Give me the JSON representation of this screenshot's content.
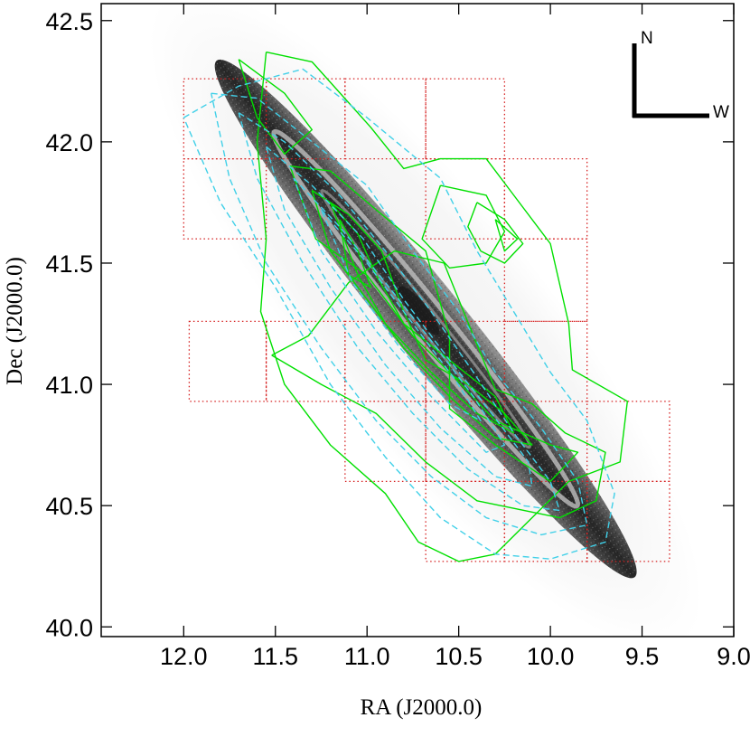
{
  "chart_data": {
    "type": "contour_map",
    "xlabel": "RA (J2000.0)",
    "ylabel": "Dec (J2000.0)",
    "xlim": [
      12.45,
      9.0
    ],
    "ylim": [
      39.96,
      42.57
    ],
    "x_ticks": [
      12.0,
      11.5,
      11.0,
      10.5,
      10.0,
      9.5,
      9.0
    ],
    "x_tick_labels": [
      "12.0",
      "11.5",
      "11.0",
      "10.5",
      "10.0",
      "9.5",
      "9.0"
    ],
    "y_ticks": [
      40.0,
      40.5,
      41.0,
      41.5,
      42.0,
      42.5
    ],
    "y_tick_labels": [
      "40.0",
      "40.5",
      "41.0",
      "41.5",
      "42.0",
      "42.5"
    ],
    "compass": {
      "north_label": "N",
      "west_label": "W"
    },
    "galaxy_image": {
      "description_color": "#444444",
      "center": [
        10.68,
        41.27
      ],
      "major_axis_end_ne": [
        11.88,
        42.33
      ],
      "major_axis_end_sw": [
        9.6,
        40.2
      ],
      "half_width_deg": 0.2,
      "ring": {
        "major_half": 1.25,
        "minor_half": 0.16
      }
    },
    "field_boxes": {
      "color": "#d62020",
      "boxes": [
        [
          [
            12.0,
            41.93
          ],
          [
            11.55,
            42.26
          ]
        ],
        [
          [
            12.0,
            41.6
          ],
          [
            11.55,
            41.93
          ]
        ],
        [
          [
            11.55,
            41.93
          ],
          [
            11.12,
            42.26
          ]
        ],
        [
          [
            11.12,
            41.93
          ],
          [
            10.68,
            42.26
          ]
        ],
        [
          [
            10.68,
            41.93
          ],
          [
            10.25,
            42.26
          ]
        ],
        [
          [
            10.68,
            41.6
          ],
          [
            10.25,
            41.93
          ]
        ],
        [
          [
            10.25,
            41.6
          ],
          [
            9.8,
            41.93
          ]
        ],
        [
          [
            10.25,
            41.26
          ],
          [
            9.8,
            41.6
          ]
        ],
        [
          [
            11.97,
            40.93
          ],
          [
            11.55,
            41.26
          ]
        ],
        [
          [
            11.55,
            40.93
          ],
          [
            11.12,
            41.26
          ]
        ],
        [
          [
            11.12,
            40.93
          ],
          [
            10.68,
            41.26
          ]
        ],
        [
          [
            10.68,
            40.93
          ],
          [
            10.25,
            41.26
          ]
        ],
        [
          [
            10.25,
            40.93
          ],
          [
            9.8,
            41.26
          ]
        ],
        [
          [
            11.12,
            40.6
          ],
          [
            10.68,
            40.93
          ]
        ],
        [
          [
            10.68,
            40.6
          ],
          [
            10.25,
            40.93
          ]
        ],
        [
          [
            10.68,
            40.27
          ],
          [
            10.25,
            40.6
          ]
        ],
        [
          [
            10.25,
            40.27
          ],
          [
            9.8,
            40.6
          ]
        ],
        [
          [
            9.8,
            40.6
          ],
          [
            9.35,
            40.93
          ]
        ],
        [
          [
            9.8,
            40.27
          ],
          [
            9.35,
            40.6
          ]
        ]
      ]
    },
    "series": [
      {
        "color": "#00e000",
        "style": "solid",
        "contours": [
          [
            [
              11.55,
              42.37
            ],
            [
              11.3,
              42.33
            ],
            [
              10.98,
              42.06
            ],
            [
              10.8,
              41.89
            ],
            [
              10.6,
              41.93
            ],
            [
              10.35,
              41.93
            ],
            [
              10.22,
              41.8
            ],
            [
              10.0,
              41.58
            ],
            [
              9.9,
              41.25
            ],
            [
              9.88,
              41.06
            ],
            [
              9.58,
              40.93
            ],
            [
              9.62,
              40.68
            ],
            [
              9.9,
              40.6
            ],
            [
              10.3,
              40.3
            ],
            [
              10.5,
              40.27
            ],
            [
              10.72,
              40.35
            ],
            [
              10.9,
              40.55
            ],
            [
              11.2,
              40.75
            ],
            [
              11.45,
              41.0
            ],
            [
              11.58,
              41.3
            ],
            [
              11.55,
              41.6
            ],
            [
              11.6,
              42.0
            ],
            [
              11.55,
              42.37
            ]
          ],
          [
            [
              11.7,
              42.34
            ],
            [
              11.45,
              42.2
            ],
            [
              11.3,
              42.05
            ],
            [
              11.45,
              41.95
            ],
            [
              11.6,
              42.1
            ],
            [
              11.7,
              42.34
            ]
          ],
          [
            [
              11.42,
              41.9
            ],
            [
              11.2,
              41.88
            ],
            [
              10.95,
              41.72
            ],
            [
              10.68,
              41.55
            ],
            [
              10.55,
              41.2
            ],
            [
              10.55,
              40.9
            ],
            [
              10.3,
              40.75
            ],
            [
              10.0,
              40.6
            ],
            [
              9.85,
              40.72
            ],
            [
              10.0,
              40.75
            ],
            [
              10.3,
              40.85
            ],
            [
              10.55,
              41.05
            ],
            [
              10.75,
              41.2
            ],
            [
              11.0,
              41.45
            ],
            [
              11.28,
              41.6
            ],
            [
              11.42,
              41.9
            ]
          ],
          [
            [
              11.3,
              41.8
            ],
            [
              11.1,
              41.7
            ],
            [
              10.92,
              41.55
            ],
            [
              10.8,
              41.3
            ],
            [
              10.68,
              41.1
            ],
            [
              10.45,
              41.0
            ],
            [
              10.25,
              40.88
            ],
            [
              10.1,
              40.75
            ],
            [
              10.3,
              40.78
            ],
            [
              10.55,
              40.95
            ],
            [
              10.8,
              41.15
            ],
            [
              11.0,
              41.35
            ],
            [
              11.2,
              41.55
            ],
            [
              11.3,
              41.8
            ]
          ],
          [
            [
              11.2,
              41.75
            ],
            [
              11.05,
              41.62
            ],
            [
              10.95,
              41.45
            ],
            [
              10.8,
              41.25
            ],
            [
              10.55,
              41.1
            ],
            [
              10.3,
              40.95
            ],
            [
              10.2,
              40.8
            ],
            [
              10.4,
              40.88
            ],
            [
              10.65,
              41.05
            ],
            [
              10.9,
              41.25
            ],
            [
              11.05,
              41.45
            ],
            [
              11.2,
              41.75
            ]
          ],
          [
            [
              11.15,
              41.68
            ],
            [
              11.05,
              41.55
            ],
            [
              10.98,
              41.4
            ],
            [
              11.1,
              41.45
            ],
            [
              11.15,
              41.68
            ]
          ],
          [
            [
              10.6,
              41.82
            ],
            [
              10.35,
              41.78
            ],
            [
              10.25,
              41.63
            ],
            [
              10.35,
              41.5
            ],
            [
              10.55,
              41.48
            ],
            [
              10.7,
              41.6
            ],
            [
              10.6,
              41.82
            ]
          ],
          [
            [
              10.4,
              41.75
            ],
            [
              10.25,
              41.68
            ],
            [
              10.15,
              41.58
            ],
            [
              10.25,
              41.5
            ],
            [
              10.38,
              41.55
            ],
            [
              10.45,
              41.65
            ],
            [
              10.4,
              41.75
            ]
          ],
          [
            [
              10.3,
              41.68
            ],
            [
              10.18,
              41.6
            ],
            [
              10.25,
              41.55
            ],
            [
              10.3,
              41.68
            ]
          ],
          [
            [
              11.52,
              41.12
            ],
            [
              11.32,
              41.2
            ],
            [
              11.1,
              41.42
            ],
            [
              10.85,
              41.55
            ],
            [
              10.58,
              41.5
            ],
            [
              10.42,
              41.2
            ],
            [
              10.3,
              40.98
            ],
            [
              10.1,
              40.92
            ],
            [
              9.92,
              40.8
            ],
            [
              9.7,
              40.72
            ],
            [
              9.75,
              40.52
            ],
            [
              9.95,
              40.45
            ],
            [
              10.4,
              40.52
            ],
            [
              10.68,
              40.68
            ],
            [
              10.95,
              40.88
            ],
            [
              11.25,
              41.0
            ],
            [
              11.52,
              41.12
            ]
          ]
        ]
      },
      {
        "color": "#40d0e8",
        "style": "dashed",
        "contours": [
          [
            [
              12.0,
              42.1
            ],
            [
              11.7,
              42.23
            ],
            [
              11.35,
              42.3
            ],
            [
              11.0,
              42.1
            ],
            [
              10.6,
              41.85
            ],
            [
              10.4,
              41.55
            ],
            [
              10.2,
              41.3
            ],
            [
              10.0,
              41.05
            ],
            [
              9.8,
              40.85
            ],
            [
              9.65,
              40.55
            ],
            [
              9.7,
              40.35
            ],
            [
              10.0,
              40.28
            ],
            [
              10.3,
              40.3
            ],
            [
              10.6,
              40.45
            ],
            [
              10.9,
              40.7
            ],
            [
              11.2,
              41.0
            ],
            [
              11.5,
              41.4
            ],
            [
              11.8,
              41.75
            ],
            [
              12.0,
              42.1
            ]
          ],
          [
            [
              11.85,
              42.2
            ],
            [
              11.6,
              42.18
            ],
            [
              11.3,
              42.0
            ],
            [
              11.0,
              41.82
            ],
            [
              10.75,
              41.55
            ],
            [
              10.5,
              41.3
            ],
            [
              10.3,
              41.05
            ],
            [
              10.05,
              40.82
            ],
            [
              9.85,
              40.6
            ],
            [
              9.8,
              40.42
            ],
            [
              10.05,
              40.38
            ],
            [
              10.35,
              40.45
            ],
            [
              10.65,
              40.62
            ],
            [
              10.95,
              40.85
            ],
            [
              11.25,
              41.15
            ],
            [
              11.55,
              41.5
            ],
            [
              11.75,
              41.85
            ],
            [
              11.85,
              42.2
            ]
          ],
          [
            [
              11.7,
              42.12
            ],
            [
              11.45,
              42.0
            ],
            [
              11.15,
              41.78
            ],
            [
              10.9,
              41.55
            ],
            [
              10.65,
              41.3
            ],
            [
              10.42,
              41.05
            ],
            [
              10.2,
              40.8
            ],
            [
              10.0,
              40.6
            ],
            [
              9.95,
              40.48
            ],
            [
              10.15,
              40.5
            ],
            [
              10.45,
              40.65
            ],
            [
              10.75,
              40.88
            ],
            [
              11.05,
              41.15
            ],
            [
              11.35,
              41.5
            ],
            [
              11.6,
              41.85
            ],
            [
              11.7,
              42.12
            ]
          ],
          [
            [
              11.55,
              41.98
            ],
            [
              11.3,
              41.82
            ],
            [
              11.02,
              41.6
            ],
            [
              10.8,
              41.35
            ],
            [
              10.55,
              41.1
            ],
            [
              10.32,
              40.88
            ],
            [
              10.12,
              40.68
            ],
            [
              10.1,
              40.58
            ],
            [
              10.3,
              40.62
            ],
            [
              10.6,
              40.82
            ],
            [
              10.9,
              41.08
            ],
            [
              11.2,
              41.4
            ],
            [
              11.45,
              41.72
            ],
            [
              11.55,
              41.98
            ]
          ],
          [
            [
              11.4,
              41.85
            ],
            [
              11.15,
              41.65
            ],
            [
              10.9,
              41.42
            ],
            [
              10.65,
              41.18
            ],
            [
              10.42,
              40.95
            ],
            [
              10.25,
              40.75
            ],
            [
              10.35,
              40.72
            ],
            [
              10.65,
              40.95
            ],
            [
              10.95,
              41.22
            ],
            [
              11.25,
              41.55
            ],
            [
              11.4,
              41.85
            ]
          ],
          [
            [
              11.25,
              41.72
            ],
            [
              11.0,
              41.5
            ],
            [
              10.75,
              41.25
            ],
            [
              10.52,
              41.02
            ],
            [
              10.38,
              40.85
            ],
            [
              10.55,
              40.92
            ],
            [
              10.82,
              41.15
            ],
            [
              11.08,
              41.42
            ],
            [
              11.25,
              41.72
            ]
          ]
        ]
      }
    ]
  }
}
